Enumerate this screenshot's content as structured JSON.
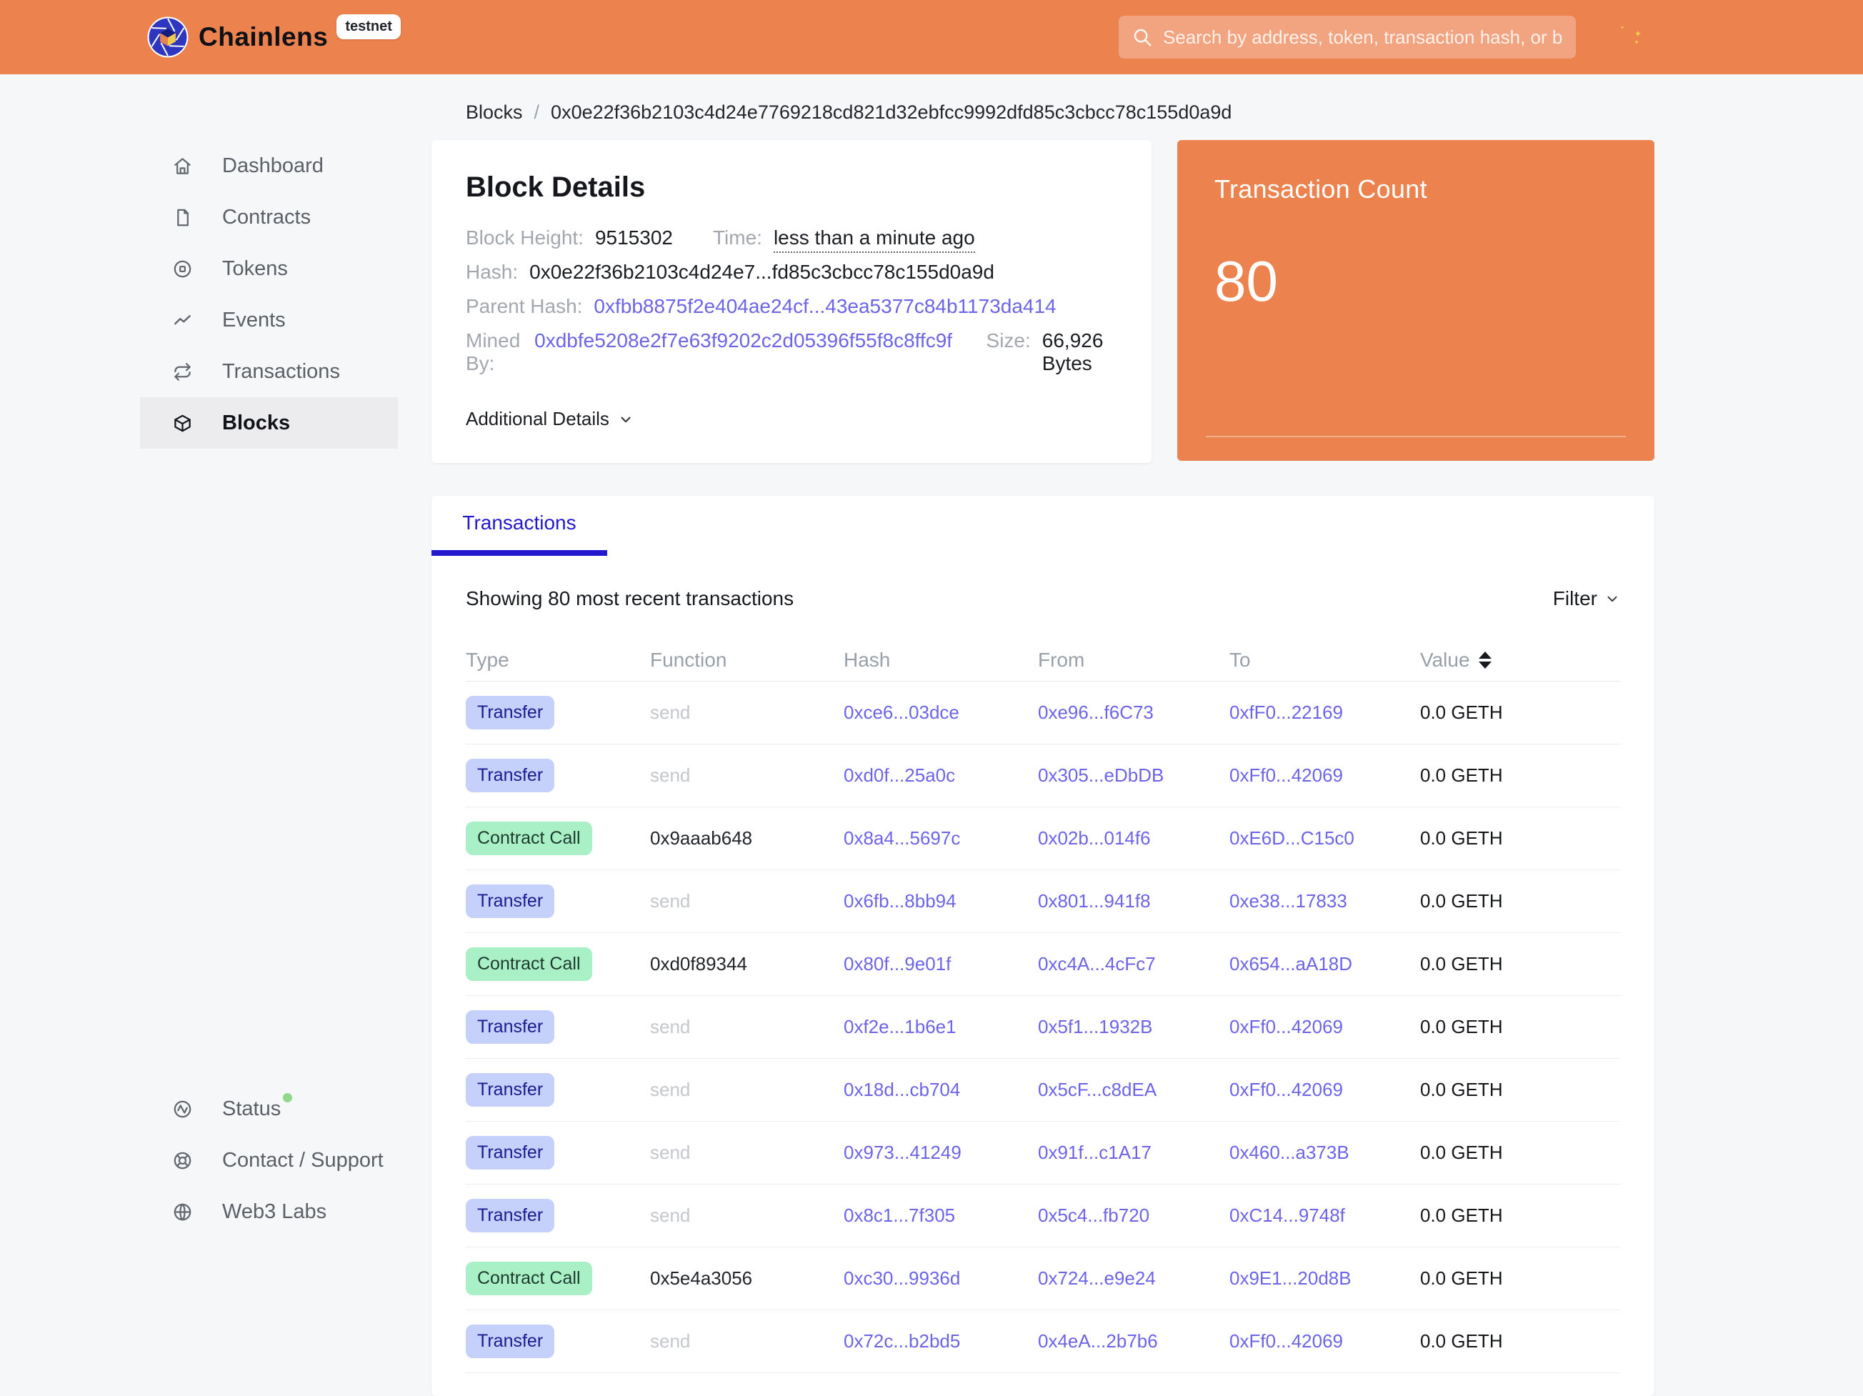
{
  "header": {
    "brand": "Chainlens",
    "network_badge": "testnet",
    "search_placeholder": "Search by address, token, transaction hash, or block number"
  },
  "breadcrumb": {
    "section": "Blocks",
    "separator": "/",
    "current": "0x0e22f36b2103c4d24e7769218cd821d32ebfcc9992dfd85c3cbcc78c155d0a9d"
  },
  "sidebar": {
    "items": [
      {
        "label": "Dashboard",
        "icon": "home-icon",
        "active": false
      },
      {
        "label": "Contracts",
        "icon": "document-icon",
        "active": false
      },
      {
        "label": "Tokens",
        "icon": "token-icon",
        "active": false
      },
      {
        "label": "Events",
        "icon": "trend-icon",
        "active": false
      },
      {
        "label": "Transactions",
        "icon": "repeat-icon",
        "active": false
      },
      {
        "label": "Blocks",
        "icon": "cube-icon",
        "active": true
      }
    ],
    "footer_items": [
      {
        "label": "Status",
        "icon": "activity-icon",
        "has_status_dot": true
      },
      {
        "label": "Contact / Support",
        "icon": "lifebuoy-icon",
        "has_status_dot": false
      },
      {
        "label": "Web3 Labs",
        "icon": "globe-icon",
        "has_status_dot": false
      }
    ]
  },
  "block_details": {
    "title": "Block Details",
    "block_height_label": "Block Height:",
    "block_height": "9515302",
    "time_label": "Time:",
    "time": "less than a minute ago",
    "hash_label": "Hash:",
    "hash": "0x0e22f36b2103c4d24e7...fd85c3cbcc78c155d0a9d",
    "parent_hash_label": "Parent Hash:",
    "parent_hash": "0xfbb8875f2e404ae24cf...43ea5377c84b1173da414",
    "mined_by_label": "Mined By:",
    "mined_by": "0xdbfe5208e2f7e63f9202c2d05396f55f8c8ffc9f",
    "size_label": "Size:",
    "size": "66,926 Bytes",
    "additional_details_label": "Additional Details"
  },
  "transaction_count": {
    "title": "Transaction Count",
    "value": "80"
  },
  "transactions_panel": {
    "tab_label": "Transactions",
    "summary": "Showing 80 most recent transactions",
    "filter_label": "Filter",
    "columns": [
      "Type",
      "Function",
      "Hash",
      "From",
      "To",
      "Value"
    ],
    "rows": [
      {
        "type": "Transfer",
        "kind": "transfer",
        "function": "send",
        "hash": "0xce6...03dce",
        "from": "0xe96...f6C73",
        "to": "0xfF0...22169",
        "value": "0.0 GETH"
      },
      {
        "type": "Transfer",
        "kind": "transfer",
        "function": "send",
        "hash": "0xd0f...25a0c",
        "from": "0x305...eDbDB",
        "to": "0xFf0...42069",
        "value": "0.0 GETH"
      },
      {
        "type": "Contract Call",
        "kind": "contract",
        "function": "0x9aaab648",
        "hash": "0x8a4...5697c",
        "from": "0x02b...014f6",
        "to": "0xE6D...C15c0",
        "value": "0.0 GETH"
      },
      {
        "type": "Transfer",
        "kind": "transfer",
        "function": "send",
        "hash": "0x6fb...8bb94",
        "from": "0x801...941f8",
        "to": "0xe38...17833",
        "value": "0.0 GETH"
      },
      {
        "type": "Contract Call",
        "kind": "contract",
        "function": "0xd0f89344",
        "hash": "0x80f...9e01f",
        "from": "0xc4A...4cFc7",
        "to": "0x654...aA18D",
        "value": "0.0 GETH"
      },
      {
        "type": "Transfer",
        "kind": "transfer",
        "function": "send",
        "hash": "0xf2e...1b6e1",
        "from": "0x5f1...1932B",
        "to": "0xFf0...42069",
        "value": "0.0 GETH"
      },
      {
        "type": "Transfer",
        "kind": "transfer",
        "function": "send",
        "hash": "0x18d...cb704",
        "from": "0x5cF...c8dEA",
        "to": "0xFf0...42069",
        "value": "0.0 GETH"
      },
      {
        "type": "Transfer",
        "kind": "transfer",
        "function": "send",
        "hash": "0x973...41249",
        "from": "0x91f...c1A17",
        "to": "0x460...a373B",
        "value": "0.0 GETH"
      },
      {
        "type": "Transfer",
        "kind": "transfer",
        "function": "send",
        "hash": "0x8c1...7f305",
        "from": "0x5c4...fb720",
        "to": "0xC14...9748f",
        "value": "0.0 GETH"
      },
      {
        "type": "Contract Call",
        "kind": "contract",
        "function": "0x5e4a3056",
        "hash": "0xc30...9936d",
        "from": "0x724...e9e24",
        "to": "0x9E1...20d8B",
        "value": "0.0 GETH"
      },
      {
        "type": "Transfer",
        "kind": "transfer",
        "function": "send",
        "hash": "0x72c...b2bd5",
        "from": "0x4eA...2b7b6",
        "to": "0xFf0...42069",
        "value": "0.0 GETH"
      }
    ]
  },
  "colors": {
    "accent_orange": "#EC824E",
    "tab_blue": "#2418CE",
    "link_purple": "#6D64E8",
    "badge_transfer_bg": "#C5D0FB",
    "badge_transfer_text": "#191B8F",
    "badge_contract_bg": "#A9F0C6",
    "badge_contract_text": "#1D3A2F",
    "status_dot_green": "#8FD98A"
  }
}
